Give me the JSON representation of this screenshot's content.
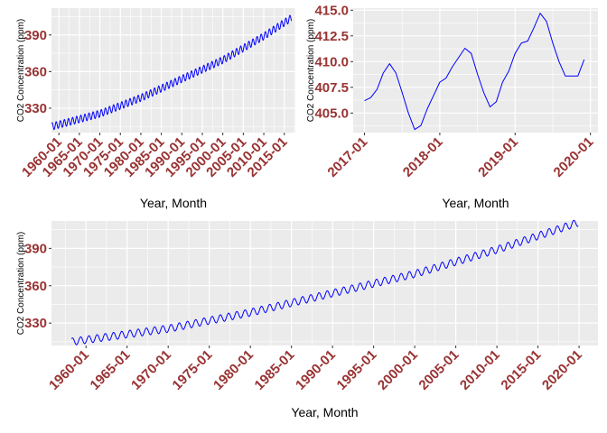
{
  "chart_data": [
    {
      "type": "line",
      "xlabel": "Year, Month",
      "ylabel": "CO2 Concentration (ppm)",
      "xlim": [
        1958.2,
        2017.7
      ],
      "ylim": [
        310,
        412
      ],
      "x_ticks": [
        {
          "value": 1960.0,
          "label": "1960-01"
        },
        {
          "value": 1965.0,
          "label": "1965-01"
        },
        {
          "value": 1970.0,
          "label": "1970-01"
        },
        {
          "value": 1975.0,
          "label": "1975-01"
        },
        {
          "value": 1980.0,
          "label": "1980-01"
        },
        {
          "value": 1985.0,
          "label": "1985-01"
        },
        {
          "value": 1990.0,
          "label": "1990-01"
        },
        {
          "value": 1995.0,
          "label": "1995-01"
        },
        {
          "value": 2000.0,
          "label": "2000-01"
        },
        {
          "value": 2005.0,
          "label": "2005-01"
        },
        {
          "value": 2010.0,
          "label": "2010-01"
        },
        {
          "value": 2015.0,
          "label": "2015-01"
        }
      ],
      "y_ticks": [
        {
          "value": 330,
          "label": "330"
        },
        {
          "value": 360,
          "label": "360"
        },
        {
          "value": 390,
          "label": "390"
        }
      ],
      "grid": true,
      "series": [
        {
          "color": "#0000ff",
          "x_start": 1958.25,
          "x_end": 2016.75,
          "trend": [
            [
              1958.25,
              315.0
            ],
            [
              1970.0,
              325.5
            ],
            [
              1980.0,
              338.5
            ],
            [
              1990.0,
              354.0
            ],
            [
              2000.0,
              369.5
            ],
            [
              2010.0,
              389.0
            ],
            [
              2016.75,
              404.0
            ]
          ],
          "seasonal_amplitude": 3.0
        }
      ]
    },
    {
      "type": "line",
      "xlabel": "Year, Month",
      "ylabel": "CO2 Concentration (ppm)",
      "xlim": [
        2016.85,
        2020.1
      ],
      "ylim": [
        403.1,
        415.2
      ],
      "x_ticks": [
        {
          "value": 2017.0,
          "label": "2017-01"
        },
        {
          "value": 2018.0,
          "label": "2018-01"
        },
        {
          "value": 2019.0,
          "label": "2019-01"
        },
        {
          "value": 2020.0,
          "label": "2020-01"
        }
      ],
      "y_ticks": [
        {
          "value": 405.0,
          "label": "405.0"
        },
        {
          "value": 407.5,
          "label": "407.5"
        },
        {
          "value": 410.0,
          "label": "410.0"
        },
        {
          "value": 412.5,
          "label": "412.5"
        },
        {
          "value": 415.0,
          "label": "415.0"
        }
      ],
      "grid": true,
      "series": [
        {
          "color": "#0000ff",
          "x": [
            2017.0,
            2017.083,
            2017.167,
            2017.25,
            2017.333,
            2017.417,
            2017.5,
            2017.583,
            2017.667,
            2017.75,
            2017.833,
            2017.917,
            2018.0,
            2018.083,
            2018.167,
            2018.25,
            2018.333,
            2018.417,
            2018.5,
            2018.583,
            2018.667,
            2018.75,
            2018.833,
            2018.917,
            2019.0,
            2019.083,
            2019.167,
            2019.25,
            2019.333,
            2019.417,
            2019.5,
            2019.583,
            2019.667,
            2019.75,
            2019.833,
            2019.917
          ],
          "y": [
            406.2,
            406.5,
            407.3,
            408.9,
            409.8,
            408.9,
            407.0,
            405.0,
            403.4,
            403.8,
            405.4,
            406.7,
            408.0,
            408.4,
            409.5,
            410.4,
            411.3,
            410.8,
            408.8,
            407.0,
            405.6,
            406.1,
            408.0,
            409.1,
            410.8,
            411.8,
            412.0,
            413.3,
            414.7,
            413.9,
            411.8,
            410.0,
            408.6,
            408.6,
            408.6,
            410.2
          ]
        }
      ]
    },
    {
      "type": "line",
      "xlabel": "Year, Month",
      "ylabel": "CO2 Concentration (ppm)",
      "xlim": [
        1955.8,
        2022.3
      ],
      "ylim": [
        312,
        412
      ],
      "x_ticks": [
        {
          "value": 1960.0,
          "label": "1960-01"
        },
        {
          "value": 1965.0,
          "label": "1965-01"
        },
        {
          "value": 1970.0,
          "label": "1970-01"
        },
        {
          "value": 1975.0,
          "label": "1975-01"
        },
        {
          "value": 1980.0,
          "label": "1980-01"
        },
        {
          "value": 1985.0,
          "label": "1985-01"
        },
        {
          "value": 1990.0,
          "label": "1990-01"
        },
        {
          "value": 1995.0,
          "label": "1995-01"
        },
        {
          "value": 2000.0,
          "label": "2000-01"
        },
        {
          "value": 2005.0,
          "label": "2005-01"
        },
        {
          "value": 2010.0,
          "label": "2010-01"
        },
        {
          "value": 2015.0,
          "label": "2015-01"
        },
        {
          "value": 2020.0,
          "label": "2020-01"
        }
      ],
      "y_ticks": [
        {
          "value": 330,
          "label": "330"
        },
        {
          "value": 360,
          "label": "360"
        },
        {
          "value": 390,
          "label": "390"
        }
      ],
      "grid": true,
      "series": [
        {
          "color": "#0000ff",
          "x_start": 1958.25,
          "x_end": 2019.92,
          "trend": [
            [
              1958.25,
              315.0
            ],
            [
              1970.0,
              325.5
            ],
            [
              1980.0,
              338.5
            ],
            [
              1990.0,
              354.0
            ],
            [
              2000.0,
              369.5
            ],
            [
              2010.0,
              389.0
            ],
            [
              2020.0,
              411.0
            ]
          ],
          "seasonal_amplitude": 3.0
        }
      ]
    }
  ]
}
